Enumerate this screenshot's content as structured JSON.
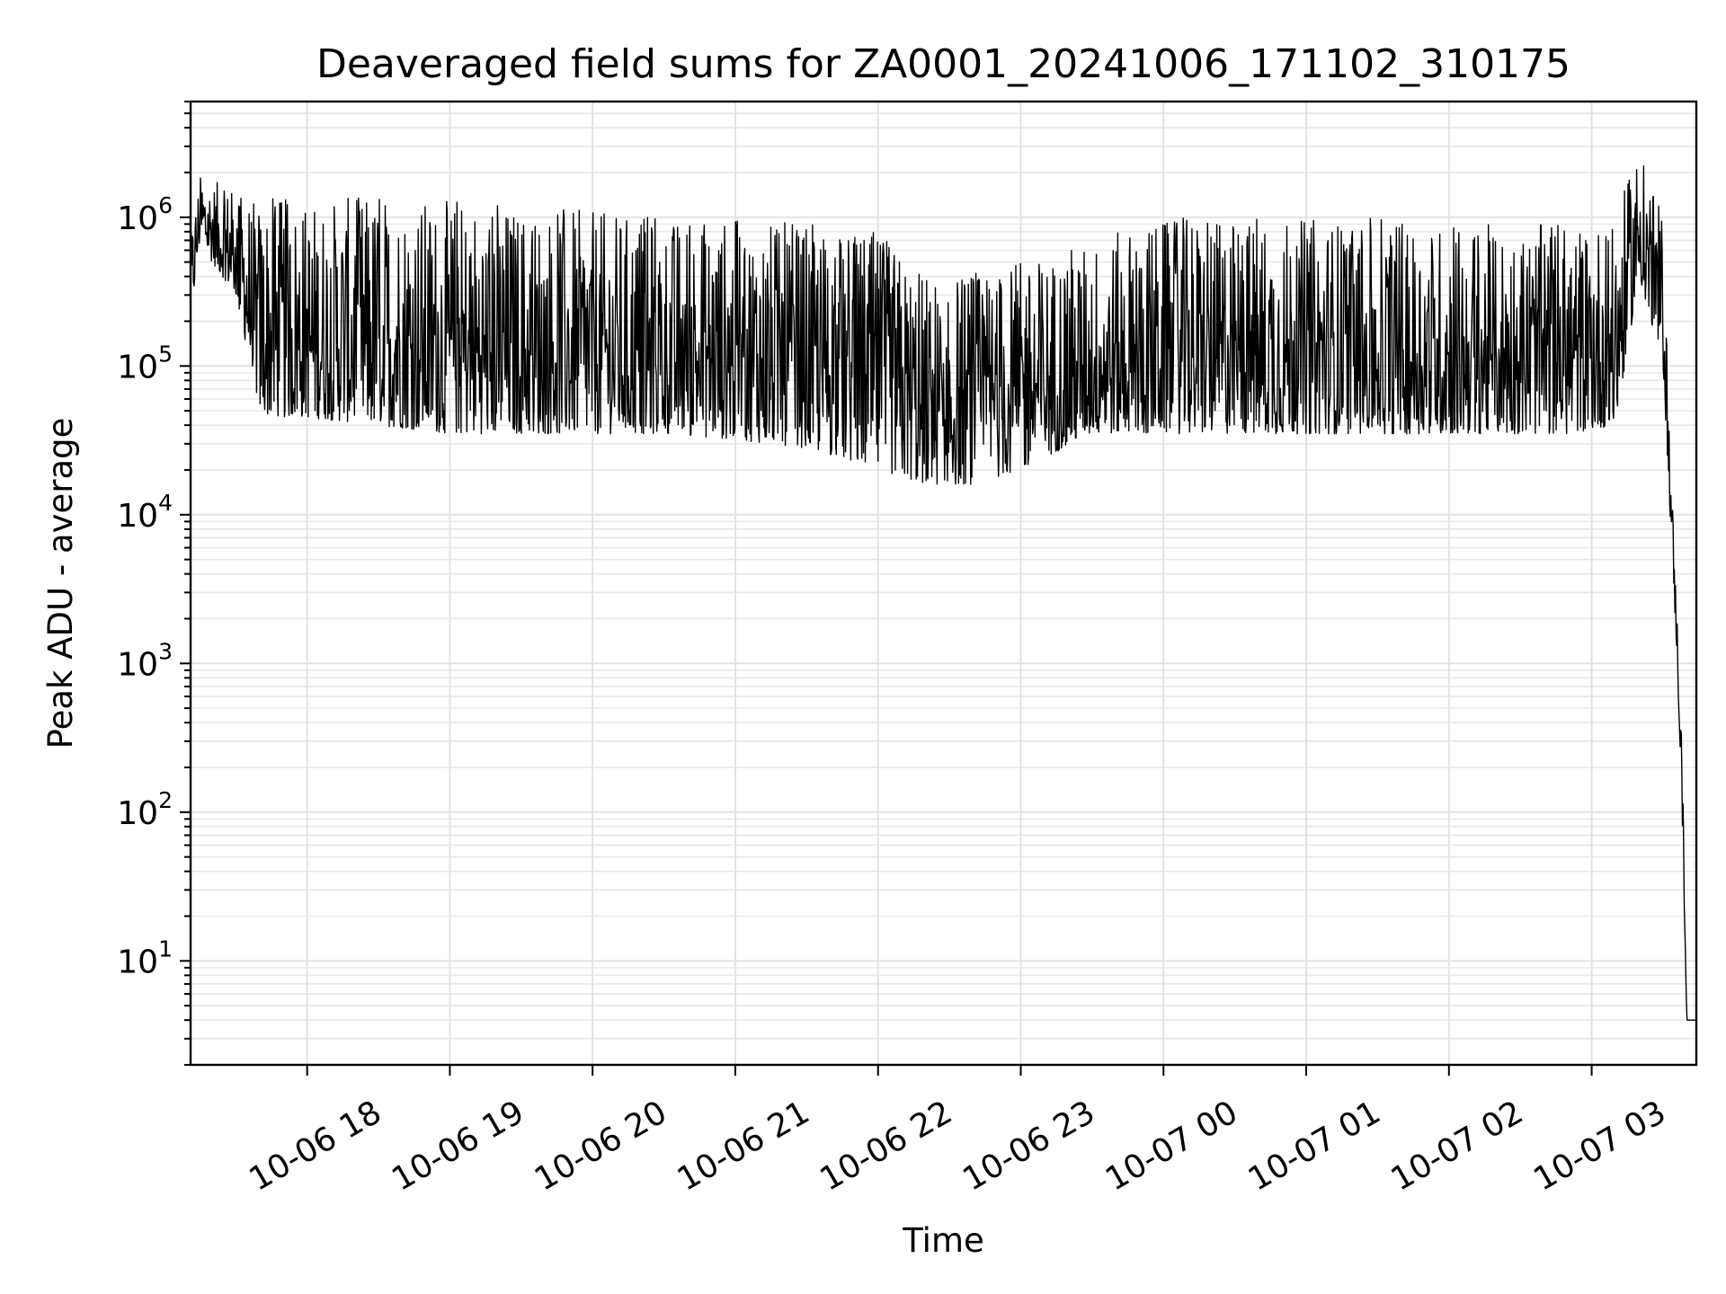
{
  "chart_data": {
    "type": "line",
    "title": "Deaveraged field sums for ZA0001_20241006_171102_310175",
    "xlabel": "Time",
    "ylabel": "Peak ADU - average",
    "yscale": "log",
    "grid": true,
    "grid_minor": true,
    "line_color": "#000000",
    "x_range": [
      "2024-10-06 17:11",
      "2024-10-07 03:44"
    ],
    "ylim": [
      2,
      6000000
    ],
    "x_ticks": [
      "10-06 18",
      "10-06 19",
      "10-06 20",
      "10-06 21",
      "10-06 22",
      "10-06 23",
      "10-07 00",
      "10-07 01",
      "10-07 02",
      "10-07 03"
    ],
    "y_ticks": [
      {
        "value": 10,
        "base": "10",
        "exp": "1"
      },
      {
        "value": 100,
        "base": "10",
        "exp": "2"
      },
      {
        "value": 1000,
        "base": "10",
        "exp": "3"
      },
      {
        "value": 10000,
        "base": "10",
        "exp": "4"
      },
      {
        "value": 100000,
        "base": "10",
        "exp": "5"
      },
      {
        "value": 1000000,
        "base": "10",
        "exp": "6"
      }
    ],
    "series": [
      {
        "x": [
          "2024-10-06 17:11",
          "2024-10-06 17:15",
          "2024-10-06 17:20",
          "2024-10-06 17:30",
          "2024-10-06 17:40",
          "2024-10-06 17:45",
          "2024-10-06 18:00",
          "2024-10-06 18:30",
          "2024-10-06 19:00",
          "2024-10-06 19:30",
          "2024-10-06 20:00",
          "2024-10-06 20:30",
          "2024-10-06 21:00",
          "2024-10-06 21:30",
          "2024-10-06 22:00",
          "2024-10-06 22:20",
          "2024-10-06 22:40",
          "2024-10-06 23:00",
          "2024-10-06 23:30",
          "2024-10-07 00:00",
          "2024-10-07 00:30",
          "2024-10-07 01:00",
          "2024-10-07 01:30",
          "2024-10-07 02:00",
          "2024-10-07 02:30",
          "2024-10-07 02:50",
          "2024-10-07 03:10",
          "2024-10-07 03:20",
          "2024-10-07 03:30",
          "2024-10-07 03:33",
          "2024-10-07 03:36",
          "2024-10-07 03:38",
          "2024-10-07 03:40",
          "2024-10-07 03:44"
        ],
        "low": [
          200000,
          700000,
          500000,
          300000,
          50000,
          45000,
          45000,
          40000,
          35000,
          35000,
          35000,
          35000,
          32000,
          28000,
          20000,
          16000,
          16000,
          20000,
          35000,
          35000,
          35000,
          35000,
          35000,
          35000,
          35000,
          35000,
          40000,
          400000,
          100000,
          10000,
          1000,
          100,
          4,
          4
        ],
        "high": [
          800000,
          2000000,
          1800000,
          1500000,
          1300000,
          1400000,
          1300000,
          1400000,
          1300000,
          1200000,
          1100000,
          1000000,
          1000000,
          900000,
          800000,
          400000,
          450000,
          500000,
          700000,
          1000000,
          1000000,
          1000000,
          1000000,
          900000,
          900000,
          900000,
          1000000,
          3000000,
          1000000,
          30000,
          2000,
          300,
          4,
          4
        ]
      }
    ]
  }
}
